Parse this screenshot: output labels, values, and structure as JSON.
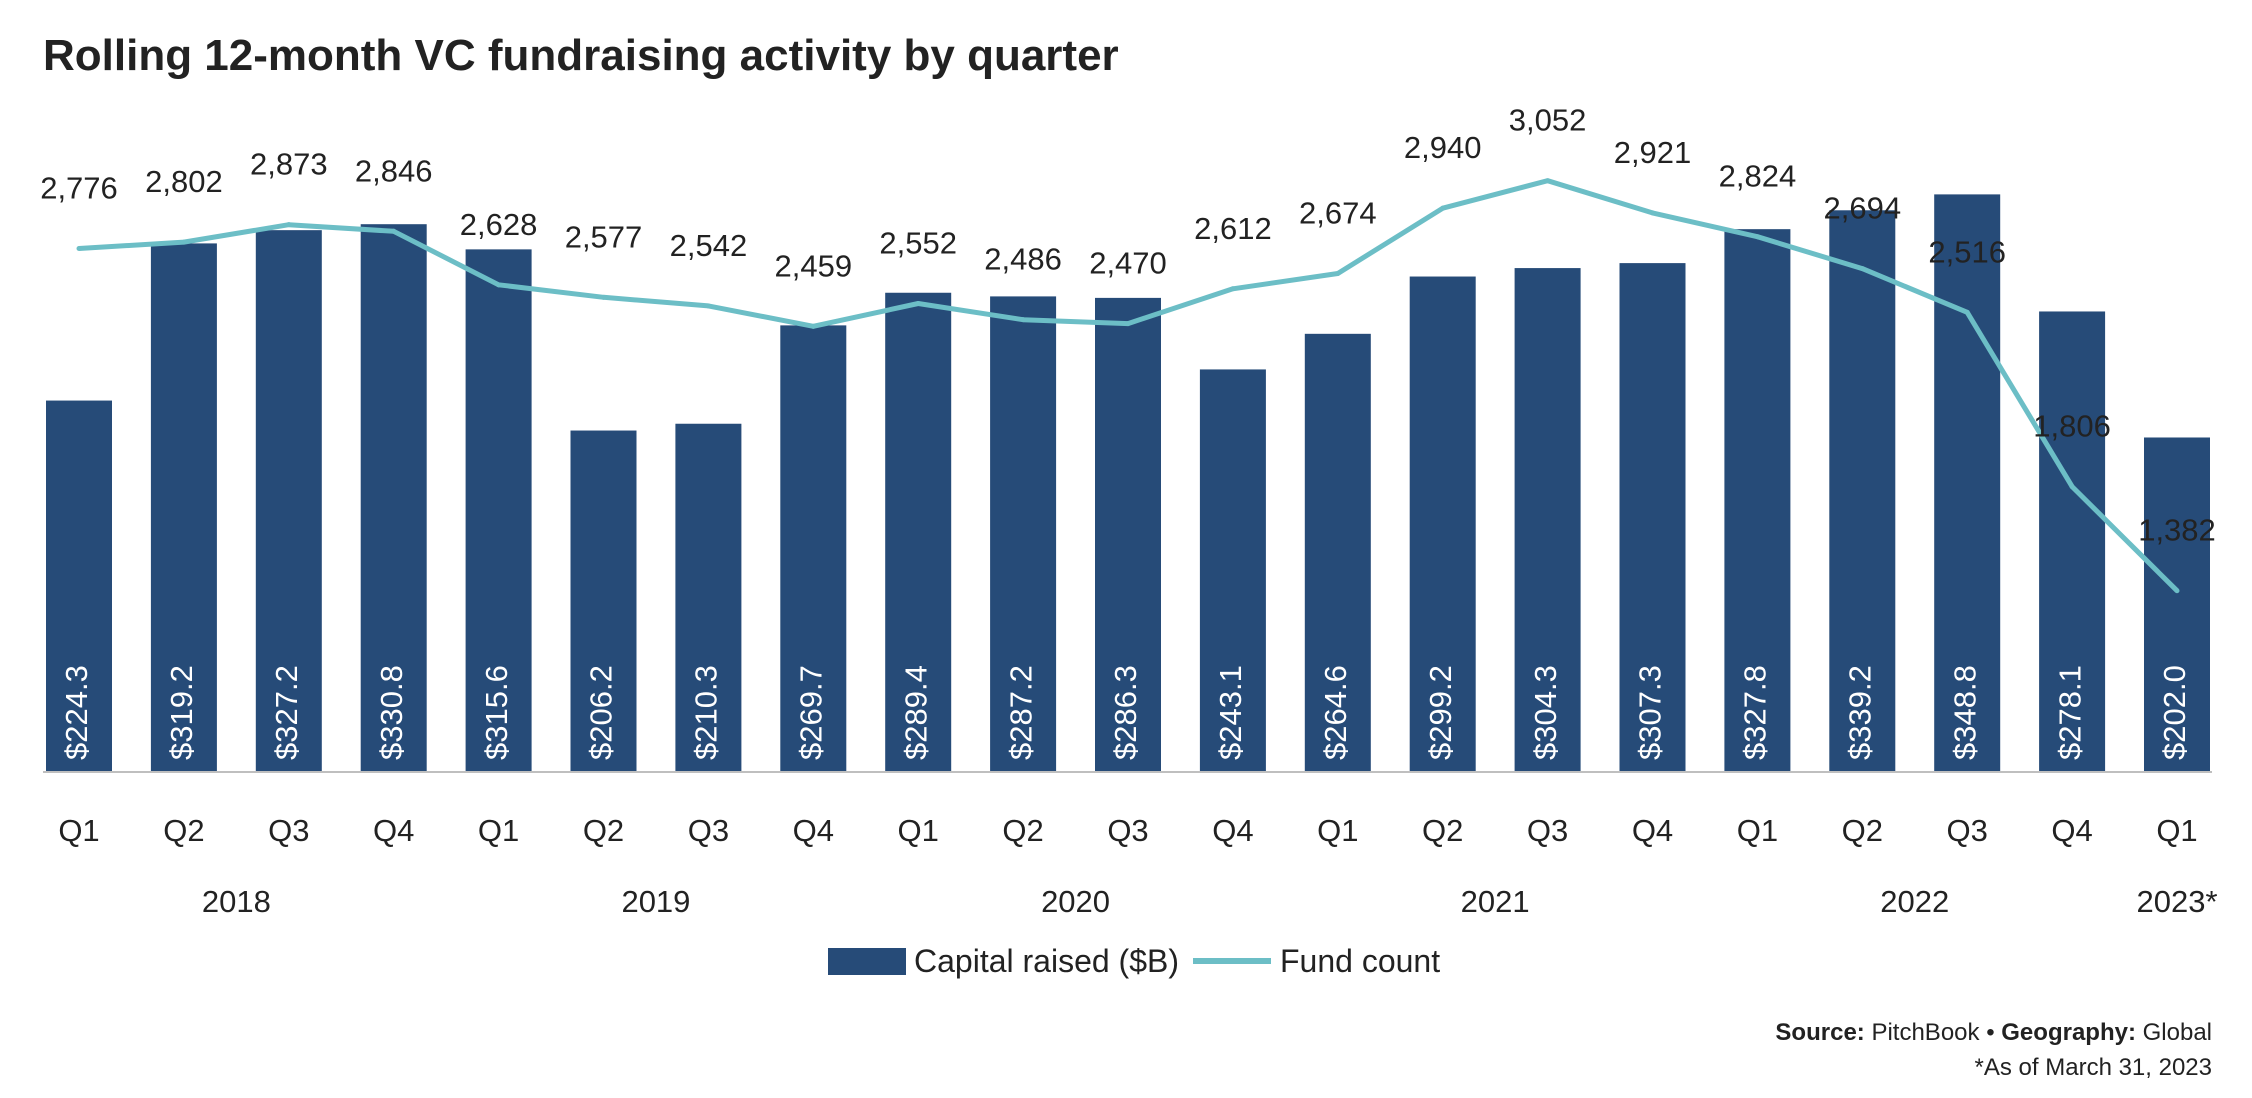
{
  "chart_data": {
    "type": "bar",
    "title": "Rolling 12-month VC fundraising activity by quarter",
    "categories": [
      "Q1",
      "Q2",
      "Q3",
      "Q4",
      "Q1",
      "Q2",
      "Q3",
      "Q4",
      "Q1",
      "Q2",
      "Q3",
      "Q4",
      "Q1",
      "Q2",
      "Q3",
      "Q4",
      "Q1",
      "Q2",
      "Q3",
      "Q4",
      "Q1"
    ],
    "year_groups": [
      {
        "label": "2018",
        "start": 0,
        "end": 3
      },
      {
        "label": "2019",
        "start": 4,
        "end": 7
      },
      {
        "label": "2020",
        "start": 8,
        "end": 11
      },
      {
        "label": "2021",
        "start": 12,
        "end": 15
      },
      {
        "label": "2022",
        "start": 16,
        "end": 19
      },
      {
        "label": "2023*",
        "start": 20,
        "end": 20
      }
    ],
    "series": [
      {
        "name": "Capital raised ($B)",
        "kind": "bar",
        "color": "#264b78",
        "values": [
          224.3,
          319.2,
          327.2,
          330.8,
          315.6,
          206.2,
          210.3,
          269.7,
          289.4,
          287.2,
          286.3,
          243.1,
          264.6,
          299.2,
          304.3,
          307.3,
          327.8,
          339.2,
          348.8,
          278.1,
          202.0
        ],
        "labels": [
          "$224.3",
          "$319.2",
          "$327.2",
          "$330.8",
          "$315.6",
          "$206.2",
          "$210.3",
          "$269.7",
          "$289.4",
          "$287.2",
          "$286.3",
          "$243.1",
          "$264.6",
          "$299.2",
          "$304.3",
          "$307.3",
          "$327.8",
          "$339.2",
          "$348.8",
          "$278.1",
          "$202.0"
        ]
      },
      {
        "name": "Fund count",
        "kind": "line",
        "color": "#6cbec6",
        "values": [
          2776,
          2802,
          2873,
          2846,
          2628,
          2577,
          2542,
          2459,
          2552,
          2486,
          2470,
          2612,
          2674,
          2940,
          3052,
          2921,
          2824,
          2694,
          2516,
          1806,
          1382
        ],
        "labels": [
          "2,776",
          "2,802",
          "2,873",
          "2,846",
          "2,628",
          "2,577",
          "2,542",
          "2,459",
          "2,552",
          "2,486",
          "2,470",
          "2,612",
          "2,674",
          "2,940",
          "3,052",
          "2,921",
          "2,824",
          "2,694",
          "2,516",
          "1,806",
          "1,382"
        ]
      }
    ],
    "legend_position": "bottom-center",
    "grid": false
  },
  "footer": {
    "source_label": "Source:",
    "source_value": "PitchBook",
    "separator": "•",
    "geo_label": "Geography:",
    "geo_value": "Global",
    "note": "*As of March 31, 2023"
  }
}
